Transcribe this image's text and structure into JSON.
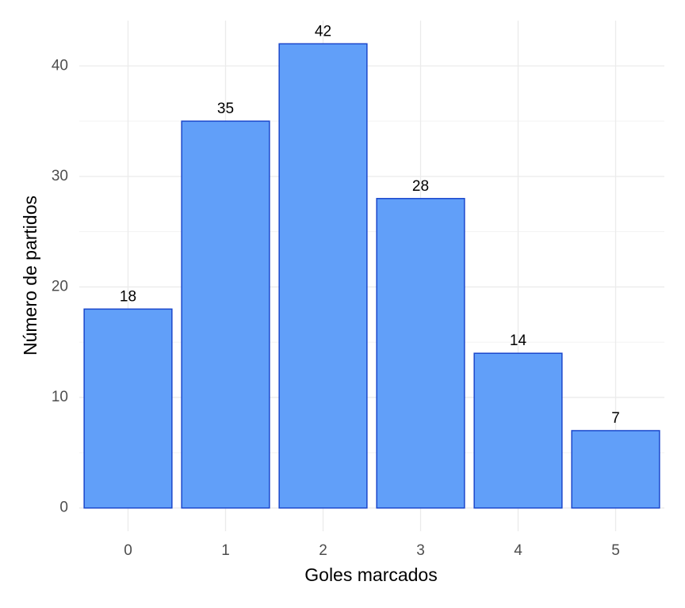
{
  "chart_data": {
    "type": "bar",
    "x_label": "Goles marcados",
    "y_label": "Número de partidos",
    "categories": [
      "0",
      "1",
      "2",
      "3",
      "4",
      "5"
    ],
    "values": [
      18,
      35,
      42,
      28,
      14,
      7
    ],
    "color": "#619ff9",
    "edge_color": "#1a47cc",
    "ylim": [
      -2.1,
      44.1
    ],
    "yticks": [
      0,
      10,
      20,
      30,
      40
    ],
    "y_minor_ticks": [
      5,
      15,
      25,
      35
    ],
    "grid": true,
    "value_labels_shown": true
  }
}
